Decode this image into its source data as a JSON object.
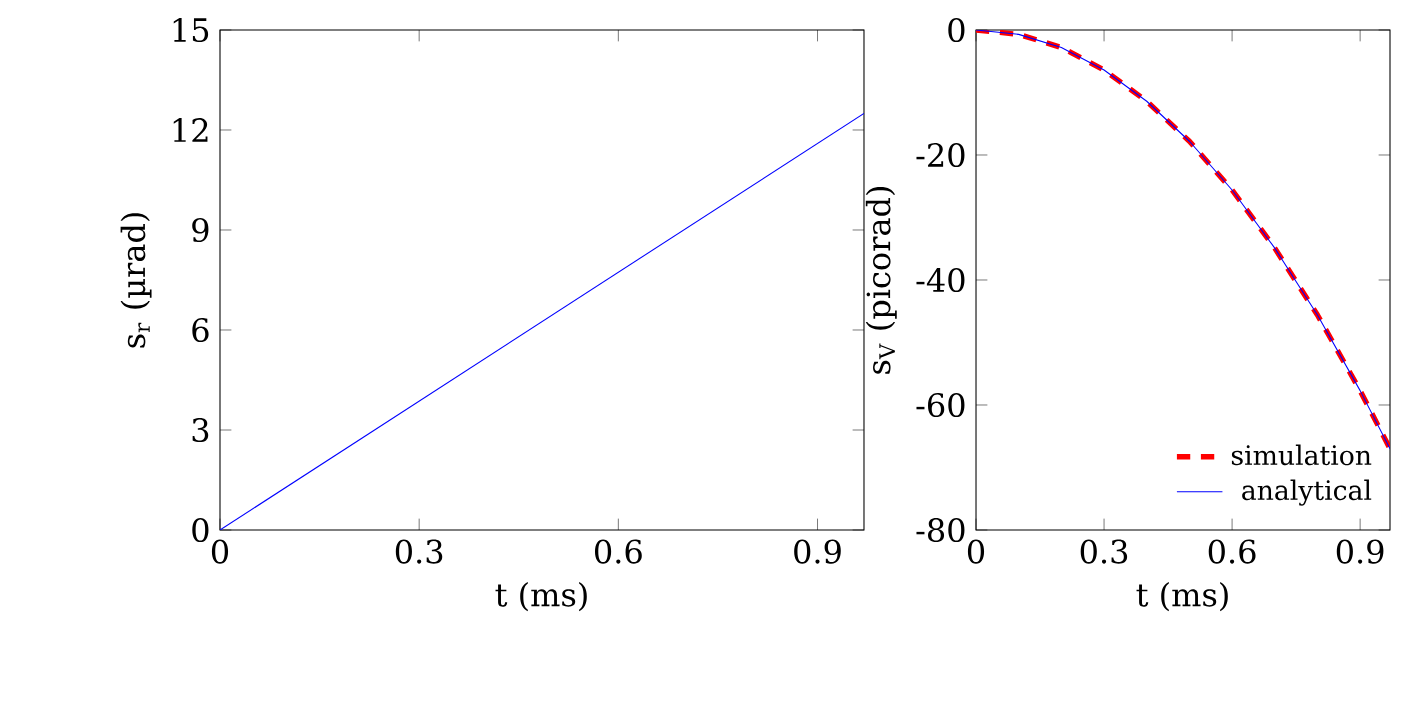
{
  "chart_data": [
    {
      "type": "line",
      "xlabel": "t (ms)",
      "ylabel": "s$_{r}$ (µrad)",
      "x": [
        0,
        0.97
      ],
      "color": "#0000ff",
      "values": [
        0,
        12.5
      ],
      "xlim": [
        0,
        0.97
      ],
      "ylim": [
        0,
        15
      ],
      "xticks": [
        0,
        0.3,
        0.6,
        0.9
      ],
      "yticks": [
        0,
        3,
        6,
        9,
        12,
        15
      ]
    },
    {
      "type": "line",
      "xlabel": "t (ms)",
      "ylabel": "s$_{V}$ (picorad)",
      "x": [
        0,
        0.1,
        0.2,
        0.3,
        0.4,
        0.5,
        0.6,
        0.7,
        0.8,
        0.9,
        0.97
      ],
      "legend": "bottom right",
      "xlim": [
        0,
        0.97
      ],
      "ylim": [
        -80,
        0
      ],
      "xticks": [
        0,
        0.3,
        0.6,
        0.9
      ],
      "yticks": [
        -80,
        -60,
        -40,
        -20,
        0
      ],
      "series": [
        {
          "name": "simulation",
          "color": "#ff0000",
          "line_style": "dashed",
          "values": [
            0,
            -0.7,
            -2.8,
            -6.4,
            -11.4,
            -17.8,
            -25.6,
            -34.9,
            -45.6,
            -57.7,
            -67
          ]
        },
        {
          "name": "analytical",
          "color": "#0000ff",
          "line_style": "solid",
          "values": [
            0,
            -0.7,
            -2.8,
            -6.4,
            -11.4,
            -17.8,
            -25.6,
            -34.9,
            -45.6,
            -57.7,
            -67
          ]
        }
      ]
    }
  ]
}
